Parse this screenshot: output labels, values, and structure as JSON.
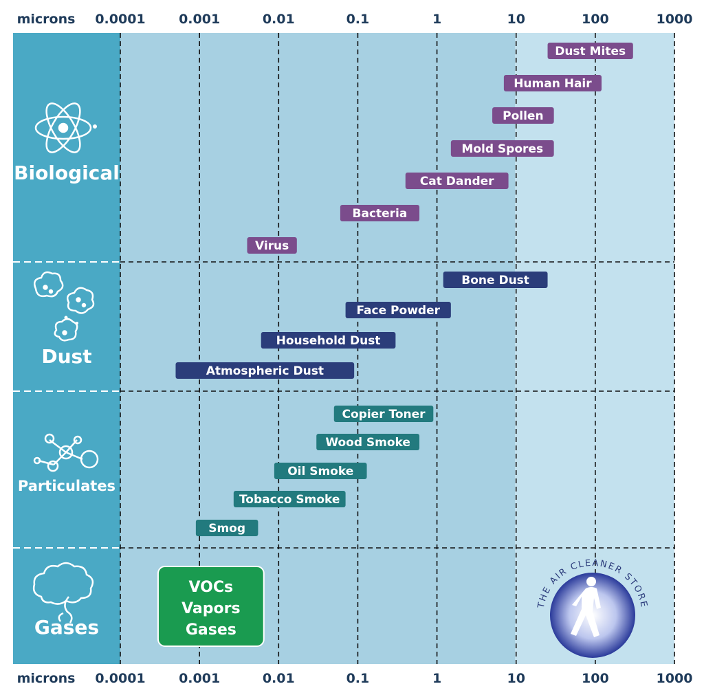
{
  "axis": {
    "unit_label": "microns",
    "ticks": [
      "0.0001",
      "0.001",
      "0.01",
      "0.1",
      "1",
      "10",
      "100",
      "1000"
    ]
  },
  "categories": [
    {
      "name": "Biological",
      "icon": "atom-icon"
    },
    {
      "name": "Dust",
      "icon": "dust-cluster-icon"
    },
    {
      "name": "Particulates",
      "icon": "molecule-icon"
    },
    {
      "name": "Gases",
      "icon": "cloud-icon"
    }
  ],
  "colors": {
    "biological": "#7b4c8c",
    "dust": "#2b3d7a",
    "particulates": "#227a7e",
    "gases_box": "#1a9b50",
    "sidebar": "#4aa9c5",
    "plot_light": "#c3e1ee",
    "plot_mid": "#a7d0e2",
    "axis_text": "#1f3b5a"
  },
  "chart_data": {
    "type": "range",
    "xscale": "log",
    "xlabel": "microns",
    "xlim": [
      0.0001,
      1000
    ],
    "groups": [
      {
        "category": "Biological",
        "items": [
          {
            "label": "Dust Mites",
            "min": 25,
            "max": 300
          },
          {
            "label": "Human Hair",
            "min": 7,
            "max": 120
          },
          {
            "label": "Pollen",
            "min": 5,
            "max": 30
          },
          {
            "label": "Mold Spores",
            "min": 1.5,
            "max": 30
          },
          {
            "label": "Cat Dander",
            "min": 0.4,
            "max": 8
          },
          {
            "label": "Bacteria",
            "min": 0.06,
            "max": 0.6
          },
          {
            "label": "Virus",
            "min": 0.004,
            "max": 0.017
          }
        ]
      },
      {
        "category": "Dust",
        "items": [
          {
            "label": "Bone Dust",
            "min": 1.2,
            "max": 25
          },
          {
            "label": "Face Powder",
            "min": 0.07,
            "max": 1.5
          },
          {
            "label": "Household Dust",
            "min": 0.006,
            "max": 0.3
          },
          {
            "label": "Atmospheric Dust",
            "min": 0.0005,
            "max": 0.09
          }
        ]
      },
      {
        "category": "Particulates",
        "items": [
          {
            "label": "Copier Toner",
            "min": 0.05,
            "max": 0.9
          },
          {
            "label": "Wood Smoke",
            "min": 0.03,
            "max": 0.6
          },
          {
            "label": "Oil Smoke",
            "min": 0.0088,
            "max": 0.13
          },
          {
            "label": "Tobacco Smoke",
            "min": 0.0027,
            "max": 0.07
          },
          {
            "label": "Smog",
            "min": 0.0009,
            "max": 0.0055
          }
        ]
      },
      {
        "category": "Gases",
        "items": [
          {
            "label": "VOCs\nVapors\nGases",
            "min": 0.0003,
            "max": 0.0065
          }
        ]
      }
    ]
  },
  "logo": {
    "text": "THE AIR CLEANER STORE"
  }
}
